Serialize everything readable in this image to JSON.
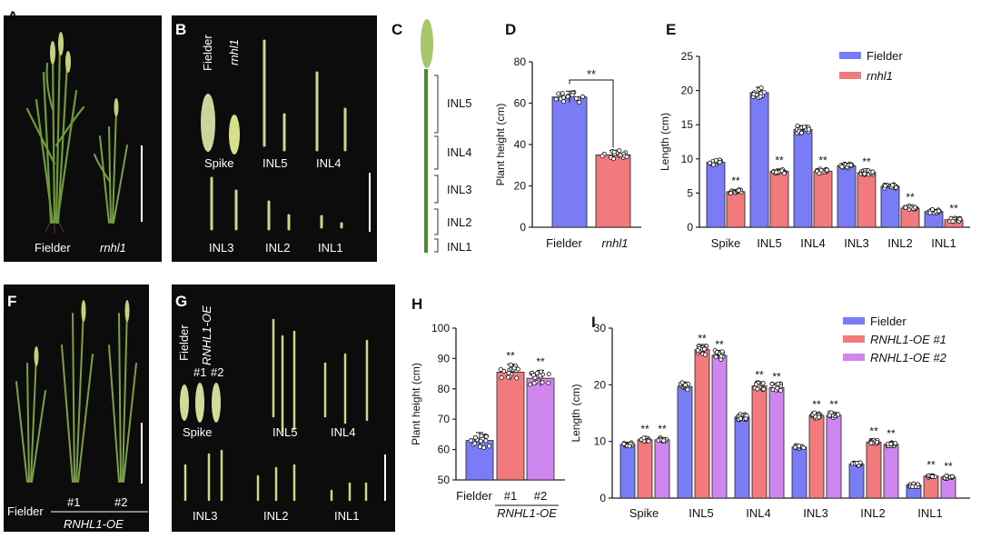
{
  "panels": {
    "A": {
      "letter": "A",
      "labels": [
        "Fielder",
        "rnhl1"
      ]
    },
    "B": {
      "letter": "B",
      "labels": {
        "fielder": "Fielder",
        "mutant": "rnhl1",
        "spike": "Spike",
        "inl5": "INL5",
        "inl4": "INL4",
        "inl3": "INL3",
        "inl2": "INL2",
        "inl1": "INL1"
      }
    },
    "C": {
      "letter": "C",
      "labels": [
        "INL5",
        "INL4",
        "INL3",
        "INL2",
        "INL1"
      ]
    },
    "D": {
      "letter": "D"
    },
    "E": {
      "letter": "E"
    },
    "F": {
      "letter": "F",
      "labels": {
        "fielder": "Fielder",
        "l1": "#1",
        "l2": "#2",
        "group": "RNHL1-OE"
      }
    },
    "G": {
      "letter": "G",
      "labels": {
        "fielder": "Fielder",
        "oe": "RNHL1-OE",
        "l1": "#1",
        "l2": "#2",
        "spike": "Spike",
        "inl5": "INL5",
        "inl4": "INL4",
        "inl3": "INL3",
        "inl2": "INL2",
        "inl1": "INL1"
      }
    },
    "H": {
      "letter": "H"
    },
    "I": {
      "letter": "I"
    }
  },
  "colors": {
    "blue": "#7a7cf5",
    "red": "#f27a7c",
    "purple": "#cf86ef",
    "photo_bg": "#0c0c0c",
    "stem": "#4c8a2e",
    "spike": "#c9d889"
  },
  "chart_data": [
    {
      "id": "D",
      "type": "bar",
      "ylabel": "Plant height (cm)",
      "ylim": [
        0,
        80
      ],
      "yticks": [
        0,
        20,
        40,
        60,
        80
      ],
      "categories": [
        "Fielder",
        "rnhl1"
      ],
      "values": [
        63,
        35
      ],
      "significance": "**"
    },
    {
      "id": "E",
      "type": "bar",
      "ylabel": "Length (cm)",
      "ylim": [
        0,
        25
      ],
      "yticks": [
        0,
        5,
        10,
        15,
        20,
        25
      ],
      "categories": [
        "Spike",
        "INL5",
        "INL4",
        "INL3",
        "INL2",
        "INL1"
      ],
      "series": [
        {
          "name": "Fielder",
          "values": [
            9.5,
            19.7,
            14.3,
            9.0,
            6.0,
            2.3
          ]
        },
        {
          "name": "rnhl1",
          "values": [
            5.2,
            8.2,
            8.2,
            8.0,
            2.8,
            1.1
          ]
        }
      ],
      "significance": [
        "**",
        "**",
        "**",
        "**",
        "**",
        "**"
      ]
    },
    {
      "id": "H",
      "type": "bar",
      "ylabel": "Plant height (cm)",
      "ylim": [
        50,
        100
      ],
      "yticks": [
        50,
        60,
        70,
        80,
        90,
        100
      ],
      "categories": [
        "Fielder",
        "#1",
        "#2"
      ],
      "group_label": "RNHL1-OE",
      "values": [
        63,
        85.5,
        83.5
      ],
      "significance": [
        "",
        "**",
        "**"
      ]
    },
    {
      "id": "I",
      "type": "bar",
      "ylabel": "Length (cm)",
      "ylim": [
        0,
        30
      ],
      "yticks": [
        0,
        10,
        20,
        30
      ],
      "categories": [
        "Spike",
        "INL5",
        "INL4",
        "INL3",
        "INL2",
        "INL1"
      ],
      "series": [
        {
          "name": "Fielder",
          "values": [
            9.5,
            19.7,
            14.3,
            9.0,
            6.0,
            2.3
          ]
        },
        {
          "name": "RNHL1-OE #1",
          "values": [
            10.3,
            26.2,
            19.8,
            14.6,
            9.9,
            3.9
          ]
        },
        {
          "name": "RNHL1-OE #2",
          "values": [
            10.3,
            25.2,
            19.5,
            14.6,
            9.5,
            3.7
          ]
        }
      ],
      "significance": [
        "**",
        "**",
        "**",
        "**",
        "**",
        "**"
      ]
    }
  ]
}
